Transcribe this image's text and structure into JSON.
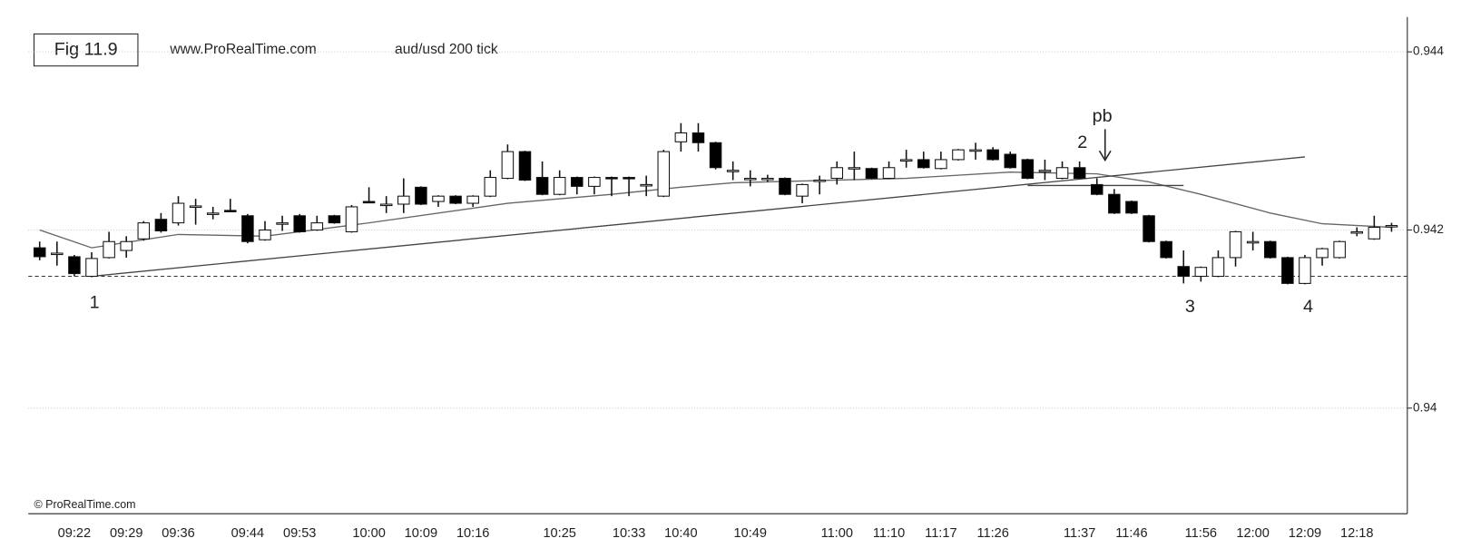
{
  "chart_data": {
    "type": "candlestick",
    "title": "Fig 11.9",
    "subtitle": "www.ProRealTime.com",
    "instrument": "aud/usd  200 tick",
    "footer": "© ProRealTime.com",
    "categories": [
      null,
      null,
      "09:22",
      null,
      null,
      "09:29",
      null,
      null,
      "09:36",
      null,
      null,
      null,
      "09:44",
      null,
      null,
      "09:53",
      null,
      null,
      null,
      "10:00",
      null,
      null,
      "10:09",
      null,
      null,
      "10:16",
      null,
      null,
      null,
      null,
      "10:25",
      null,
      null,
      null,
      "10:33",
      null,
      null,
      "10:40",
      null,
      null,
      null,
      "10:49",
      null,
      null,
      null,
      null,
      "11:00",
      null,
      null,
      "11:10",
      null,
      null,
      "11:17",
      null,
      null,
      "11:26",
      null,
      null,
      null,
      null,
      "11:37",
      null,
      null,
      "11:46",
      null,
      null,
      null,
      "11:56",
      null,
      null,
      "12:00",
      null,
      null,
      "12:09",
      null,
      null,
      "12:18",
      null,
      null
    ],
    "open": [
      0.9418,
      0.94174,
      0.9417,
      0.94148,
      0.94169,
      0.94177,
      0.9419,
      0.94212,
      0.94208,
      0.94226,
      0.94219,
      0.94222,
      0.94216,
      0.94189,
      0.94208,
      0.94216,
      0.942,
      0.94216,
      0.94198,
      0.94232,
      0.94229,
      0.94229,
      0.94248,
      0.94232,
      0.94238,
      0.9423,
      0.94238,
      0.94258,
      0.94288,
      0.94259,
      0.9424,
      0.94259,
      0.94249,
      0.94259,
      0.94259,
      0.94251,
      0.94238,
      0.94299,
      0.94309,
      0.94298,
      0.94267,
      0.94258,
      0.94258,
      0.94258,
      0.94238,
      0.94256,
      0.94258,
      0.9427,
      0.94269,
      0.94258,
      0.94279,
      0.94279,
      0.94269,
      0.94279,
      0.9429,
      0.9429,
      0.94285,
      0.94279,
      0.94267,
      0.94258,
      0.9427,
      0.94251,
      0.9424,
      0.94232,
      0.94216,
      0.94187,
      0.94159,
      0.94148,
      0.94148,
      0.94169,
      0.94187,
      0.94187,
      0.94169,
      0.9414,
      0.94169,
      0.94169,
      0.94198,
      0.9419,
      0.94205
    ],
    "high": [
      0.94187,
      0.94187,
      0.94172,
      0.94175,
      0.94198,
      0.94193,
      0.9421,
      0.94219,
      0.94238,
      0.94235,
      0.94226,
      0.94235,
      0.94218,
      0.9421,
      0.94216,
      0.94218,
      0.94216,
      0.94217,
      0.94228,
      0.94248,
      0.94238,
      0.94258,
      0.94249,
      0.94239,
      0.94239,
      0.94239,
      0.94267,
      0.94296,
      0.94289,
      0.94277,
      0.94267,
      0.9426,
      0.9426,
      0.9426,
      0.9426,
      0.94261,
      0.9429,
      0.9432,
      0.9432,
      0.94299,
      0.94277,
      0.94267,
      0.94262,
      0.94259,
      0.94252,
      0.94261,
      0.94277,
      0.94288,
      0.9427,
      0.94277,
      0.9429,
      0.94288,
      0.94288,
      0.94291,
      0.94298,
      0.94293,
      0.94288,
      0.9428,
      0.94279,
      0.94277,
      0.94277,
      0.94258,
      0.94246,
      0.94233,
      0.94217,
      0.94188,
      0.94177,
      0.94159,
      0.94177,
      0.94199,
      0.94198,
      0.94188,
      0.9417,
      0.94172,
      0.9418,
      0.94188,
      0.94203,
      0.94216,
      0.94208
    ],
    "low": [
      0.94166,
      0.9416,
      0.94148,
      0.94147,
      0.94168,
      0.94169,
      0.94188,
      0.94197,
      0.94205,
      0.94206,
      0.94212,
      0.9422,
      0.94185,
      0.94188,
      0.94199,
      0.94197,
      0.94199,
      0.94207,
      0.94197,
      0.9423,
      0.94219,
      0.94219,
      0.94228,
      0.94226,
      0.94229,
      0.94226,
      0.94237,
      0.94257,
      0.94255,
      0.94239,
      0.94239,
      0.9424,
      0.9424,
      0.94238,
      0.94238,
      0.94238,
      0.94237,
      0.94288,
      0.94288,
      0.94268,
      0.94256,
      0.94249,
      0.94254,
      0.94239,
      0.9423,
      0.9424,
      0.94251,
      0.94256,
      0.94257,
      0.94257,
      0.9427,
      0.94269,
      0.94268,
      0.94278,
      0.94279,
      0.94278,
      0.94269,
      0.94257,
      0.94256,
      0.94257,
      0.94257,
      0.94239,
      0.94218,
      0.94218,
      0.94186,
      0.94168,
      0.9414,
      0.94142,
      0.94147,
      0.94159,
      0.94177,
      0.94168,
      0.94139,
      0.94139,
      0.9416,
      0.94168,
      0.94193,
      0.94189,
      0.94198
    ],
    "close": [
      0.9417,
      0.94174,
      0.94151,
      0.94168,
      0.94187,
      0.94187,
      0.94208,
      0.94199,
      0.9423,
      0.94227,
      0.94219,
      0.94221,
      0.94187,
      0.942,
      0.94208,
      0.94198,
      0.94208,
      0.94208,
      0.94226,
      0.94231,
      0.94229,
      0.94238,
      0.94229,
      0.94238,
      0.9423,
      0.94238,
      0.94259,
      0.94288,
      0.94256,
      0.9424,
      0.94259,
      0.94249,
      0.94259,
      0.94258,
      0.94258,
      0.94251,
      0.94288,
      0.94309,
      0.94298,
      0.9427,
      0.94267,
      0.94258,
      0.94258,
      0.9424,
      0.94251,
      0.94256,
      0.9427,
      0.9427,
      0.94258,
      0.9427,
      0.94279,
      0.9427,
      0.94279,
      0.9429,
      0.9429,
      0.94279,
      0.9427,
      0.94258,
      0.94267,
      0.9427,
      0.94258,
      0.9424,
      0.94219,
      0.94219,
      0.94187,
      0.94169,
      0.94148,
      0.94158,
      0.94169,
      0.94198,
      0.94187,
      0.94169,
      0.9414,
      0.94169,
      0.94179,
      0.94187,
      0.94198,
      0.94203,
      0.94205
    ],
    "up_color": "#ffffff",
    "down_color": "#000000",
    "lines": [
      {
        "x": [
          0,
          3,
          8,
          13,
          19,
          27,
          33,
          37,
          40,
          50,
          56,
          61,
          64,
          67,
          71,
          74,
          78
        ],
        "values": [
          0.942,
          0.9418,
          0.94195,
          0.94193,
          0.94208,
          0.9423,
          0.9424,
          0.94248,
          0.94253,
          0.94258,
          0.94265,
          0.94263,
          0.94254,
          0.9424,
          0.94219,
          0.94207,
          0.94203
        ],
        "color": "#666666"
      },
      {
        "x": [
          3,
          73
        ],
        "values": [
          0.94148,
          0.94282
        ],
        "color": "#444444"
      },
      {
        "x": [
          57,
          66
        ],
        "values": [
          0.9425,
          0.9425
        ],
        "color": "#444444"
      }
    ],
    "hline": 0.94148,
    "annotations": [
      "1",
      "2",
      "pb",
      "3",
      "4"
    ],
    "ylim": [
      0.9388,
      0.9444
    ],
    "yticks": [
      0.94,
      0.942,
      0.944
    ],
    "grid": true
  }
}
